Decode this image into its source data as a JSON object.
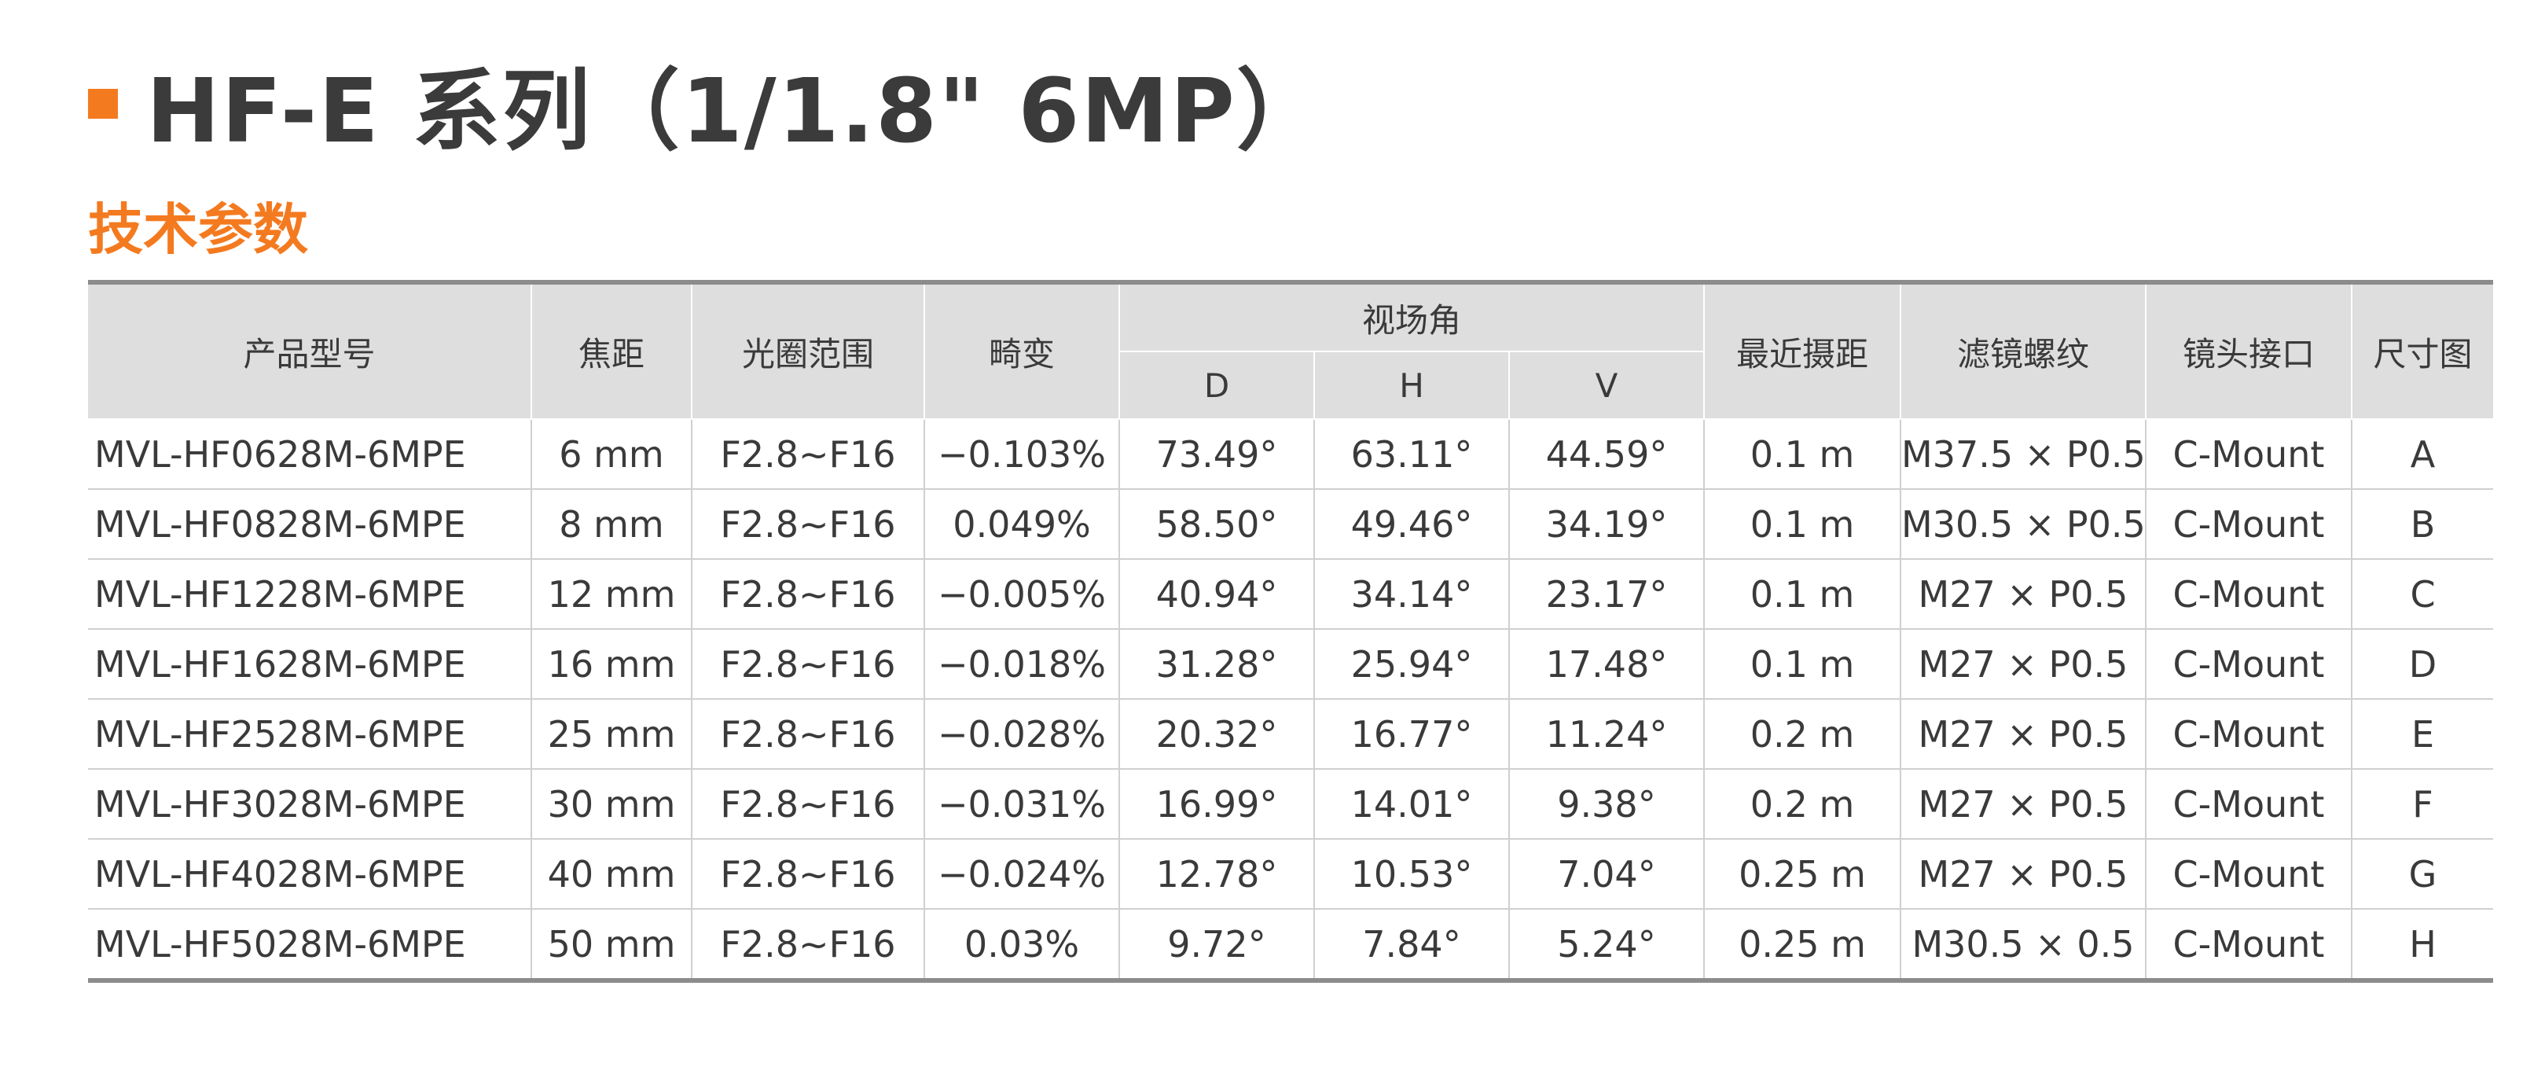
{
  "header": {
    "title": "HF-E 系列（1/1.8\" 6MP）",
    "section_title": "技术参数",
    "accent_color": "#f47a20"
  },
  "table": {
    "columns": {
      "model": "产品型号",
      "focal": "焦距",
      "aperture": "光圈范围",
      "distortion": "畸变",
      "fov": "视场角",
      "fov_d": "D",
      "fov_h": "H",
      "fov_v": "V",
      "mod": "最近摄距",
      "filter": "滤镜螺纹",
      "mount": "镜头接口",
      "drawing": "尺寸图"
    },
    "rows": [
      {
        "model": "MVL-HF0628M-6MPE",
        "focal": "6 mm",
        "aperture": "F2.8~F16",
        "distortion": "−0.103%",
        "d": "73.49°",
        "h": "63.11°",
        "v": "44.59°",
        "mod": "0.1 m",
        "filter": "M37.5 × P0.5",
        "mount": "C-Mount",
        "drawing": "A"
      },
      {
        "model": "MVL-HF0828M-6MPE",
        "focal": "8 mm",
        "aperture": "F2.8~F16",
        "distortion": "0.049%",
        "d": "58.50°",
        "h": "49.46°",
        "v": "34.19°",
        "mod": "0.1 m",
        "filter": "M30.5 × P0.5",
        "mount": "C-Mount",
        "drawing": "B"
      },
      {
        "model": "MVL-HF1228M-6MPE",
        "focal": "12 mm",
        "aperture": "F2.8~F16",
        "distortion": "−0.005%",
        "d": "40.94°",
        "h": "34.14°",
        "v": "23.17°",
        "mod": "0.1 m",
        "filter": "M27 × P0.5",
        "mount": "C-Mount",
        "drawing": "C"
      },
      {
        "model": "MVL-HF1628M-6MPE",
        "focal": "16 mm",
        "aperture": "F2.8~F16",
        "distortion": "−0.018%",
        "d": "31.28°",
        "h": "25.94°",
        "v": "17.48°",
        "mod": "0.1 m",
        "filter": "M27 × P0.5",
        "mount": "C-Mount",
        "drawing": "D"
      },
      {
        "model": "MVL-HF2528M-6MPE",
        "focal": "25 mm",
        "aperture": "F2.8~F16",
        "distortion": "−0.028%",
        "d": "20.32°",
        "h": "16.77°",
        "v": "11.24°",
        "mod": "0.2 m",
        "filter": "M27 × P0.5",
        "mount": "C-Mount",
        "drawing": "E"
      },
      {
        "model": "MVL-HF3028M-6MPE",
        "focal": "30 mm",
        "aperture": "F2.8~F16",
        "distortion": "−0.031%",
        "d": "16.99°",
        "h": "14.01°",
        "v": "9.38°",
        "mod": "0.2 m",
        "filter": "M27 × P0.5",
        "mount": "C-Mount",
        "drawing": "F"
      },
      {
        "model": "MVL-HF4028M-6MPE",
        "focal": "40 mm",
        "aperture": "F2.8~F16",
        "distortion": "−0.024%",
        "d": "12.78°",
        "h": "10.53°",
        "v": "7.04°",
        "mod": "0.25 m",
        "filter": "M27 × P0.5",
        "mount": "C-Mount",
        "drawing": "G"
      },
      {
        "model": "MVL-HF5028M-6MPE",
        "focal": "50 mm",
        "aperture": "F2.8~F16",
        "distortion": "0.03%",
        "d": "9.72°",
        "h": "7.84°",
        "v": "5.24°",
        "mod": "0.25 m",
        "filter": "M30.5 × 0.5",
        "mount": "C-Mount",
        "drawing": "H"
      }
    ]
  }
}
